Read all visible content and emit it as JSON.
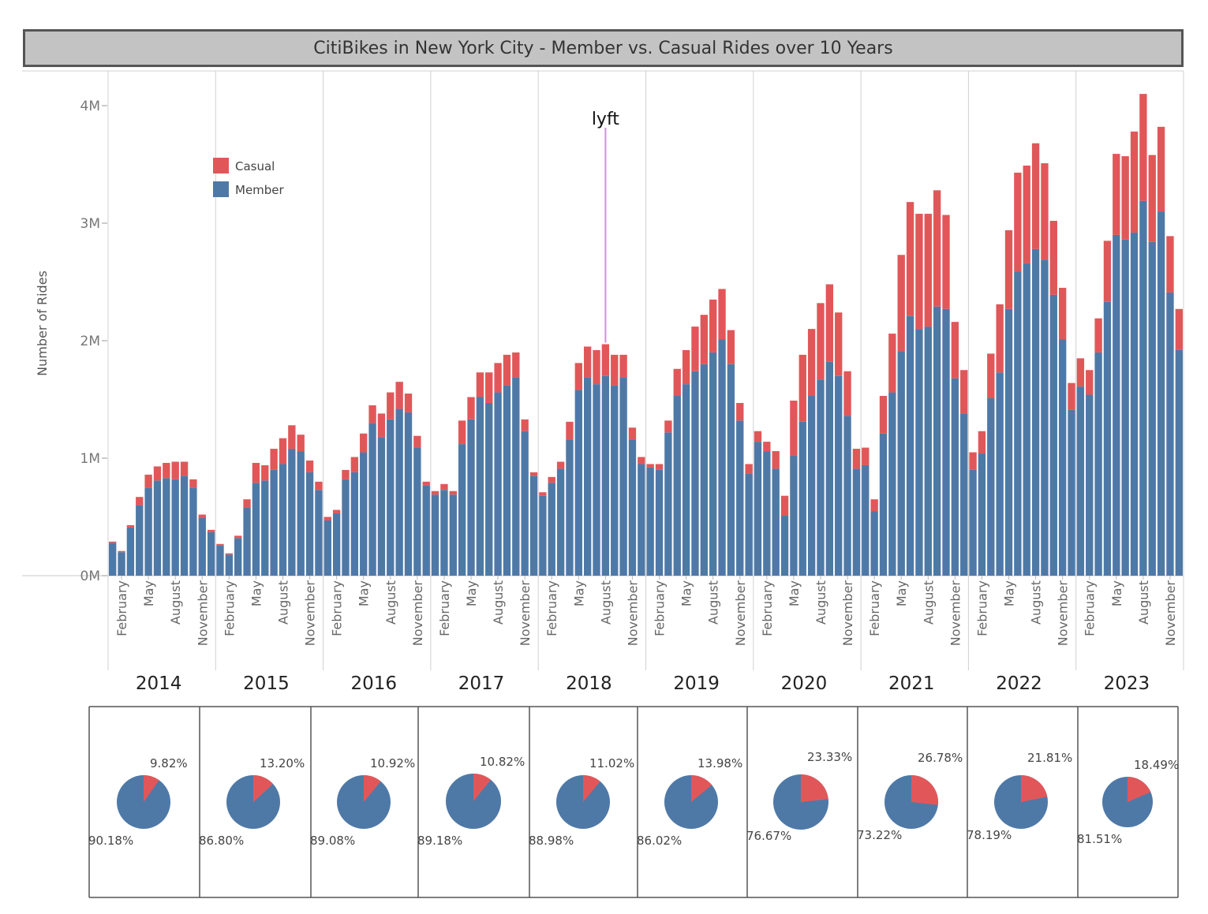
{
  "title": "CitiBikes in New York City - Member vs. Casual Rides over 10 Years",
  "colors": {
    "casual": "#e15759",
    "member": "#4e79a7",
    "annotation": "#d98bd9"
  },
  "chart_data": [
    {
      "type": "bar",
      "stacked": true,
      "ylabel": "Number of Rides",
      "ylim": [
        0,
        4300000
      ],
      "yticks": [
        {
          "value": 0,
          "label": "0M"
        },
        {
          "value": 1000000,
          "label": "1M"
        },
        {
          "value": 2000000,
          "label": "2M"
        },
        {
          "value": 3000000,
          "label": "3M"
        },
        {
          "value": 4000000,
          "label": "4M"
        }
      ],
      "years": [
        "2014",
        "2015",
        "2016",
        "2017",
        "2018",
        "2019",
        "2020",
        "2021",
        "2022",
        "2023"
      ],
      "month_tick_labels": [
        "February",
        "May",
        "August",
        "November"
      ],
      "legend": {
        "position": "top-left",
        "entries": [
          "Casual",
          "Member"
        ]
      },
      "annotation": {
        "label": "lyft",
        "year": "2018",
        "month": 7
      },
      "series": [
        {
          "name": "Member",
          "values": [
            [
              280000,
              200000,
              410000,
              600000,
              750000,
              810000,
              830000,
              820000,
              850000,
              750000,
              490000,
              370000
            ],
            [
              260000,
              180000,
              320000,
              580000,
              790000,
              810000,
              900000,
              950000,
              1080000,
              1060000,
              880000,
              730000
            ],
            [
              470000,
              530000,
              820000,
              880000,
              1050000,
              1300000,
              1180000,
              1330000,
              1420000,
              1390000,
              1090000,
              770000
            ],
            [
              690000,
              730000,
              690000,
              1120000,
              1330000,
              1520000,
              1470000,
              1560000,
              1620000,
              1690000,
              1230000,
              850000
            ],
            [
              680000,
              790000,
              910000,
              1160000,
              1580000,
              1690000,
              1630000,
              1700000,
              1620000,
              1690000,
              1160000,
              950000
            ],
            [
              920000,
              900000,
              1220000,
              1530000,
              1630000,
              1740000,
              1800000,
              1900000,
              2010000,
              1800000,
              1320000,
              870000
            ],
            [
              1140000,
              1060000,
              910000,
              510000,
              1020000,
              1310000,
              1530000,
              1670000,
              1820000,
              1700000,
              1360000,
              910000
            ],
            [
              940000,
              550000,
              1210000,
              1560000,
              1910000,
              2210000,
              2100000,
              2120000,
              2290000,
              2270000,
              1680000,
              1380000
            ],
            [
              900000,
              1040000,
              1510000,
              1730000,
              2270000,
              2590000,
              2660000,
              2780000,
              2690000,
              2390000,
              2010000,
              1410000
            ],
            [
              1610000,
              1540000,
              1900000,
              2330000,
              2900000,
              2860000,
              2920000,
              3190000,
              2840000,
              3100000,
              2410000,
              1920000
            ]
          ]
        },
        {
          "name": "Casual",
          "values": [
            [
              10000,
              10000,
              20000,
              70000,
              110000,
              120000,
              130000,
              150000,
              120000,
              70000,
              30000,
              20000
            ],
            [
              10000,
              10000,
              20000,
              70000,
              170000,
              130000,
              180000,
              220000,
              200000,
              140000,
              100000,
              70000
            ],
            [
              30000,
              30000,
              80000,
              130000,
              160000,
              150000,
              200000,
              230000,
              230000,
              160000,
              100000,
              30000
            ],
            [
              30000,
              50000,
              30000,
              200000,
              190000,
              210000,
              260000,
              250000,
              260000,
              210000,
              100000,
              30000
            ],
            [
              30000,
              50000,
              60000,
              150000,
              230000,
              260000,
              290000,
              270000,
              260000,
              190000,
              100000,
              60000
            ],
            [
              30000,
              50000,
              100000,
              230000,
              290000,
              380000,
              420000,
              450000,
              430000,
              290000,
              150000,
              80000
            ],
            [
              90000,
              80000,
              150000,
              170000,
              470000,
              570000,
              570000,
              650000,
              660000,
              540000,
              380000,
              170000
            ],
            [
              150000,
              100000,
              320000,
              500000,
              820000,
              970000,
              980000,
              960000,
              990000,
              800000,
              480000,
              370000
            ],
            [
              150000,
              190000,
              380000,
              580000,
              670000,
              840000,
              830000,
              900000,
              820000,
              630000,
              440000,
              230000
            ],
            [
              240000,
              210000,
              290000,
              520000,
              690000,
              710000,
              860000,
              910000,
              740000,
              720000,
              480000,
              350000
            ]
          ]
        }
      ]
    },
    {
      "type": "pie",
      "panels": [
        {
          "year": "2014",
          "casual": 9.82,
          "member": 90.18,
          "casual_label": "9.82%",
          "member_label": "90.18%"
        },
        {
          "year": "2015",
          "casual": 13.2,
          "member": 86.8,
          "casual_label": "13.20%",
          "member_label": "86.80%"
        },
        {
          "year": "2016",
          "casual": 10.92,
          "member": 89.08,
          "casual_label": "10.92%",
          "member_label": "89.08%"
        },
        {
          "year": "2017",
          "casual": 10.82,
          "member": 89.18,
          "casual_label": "10.82%",
          "member_label": "89.18%"
        },
        {
          "year": "2018",
          "casual": 11.02,
          "member": 88.98,
          "casual_label": "11.02%",
          "member_label": "88.98%"
        },
        {
          "year": "2019",
          "casual": 13.98,
          "member": 86.02,
          "casual_label": "13.98%",
          "member_label": "86.02%"
        },
        {
          "year": "2020",
          "casual": 23.33,
          "member": 76.67,
          "casual_label": "23.33%",
          "member_label": "76.67%"
        },
        {
          "year": "2021",
          "casual": 26.78,
          "member": 73.22,
          "casual_label": "26.78%",
          "member_label": "73.22%"
        },
        {
          "year": "2022",
          "casual": 21.81,
          "member": 78.19,
          "casual_label": "21.81%",
          "member_label": "78.19%"
        },
        {
          "year": "2023",
          "casual": 18.49,
          "member": 81.51,
          "casual_label": "18.49%",
          "member_label": "81.51%"
        }
      ]
    }
  ]
}
